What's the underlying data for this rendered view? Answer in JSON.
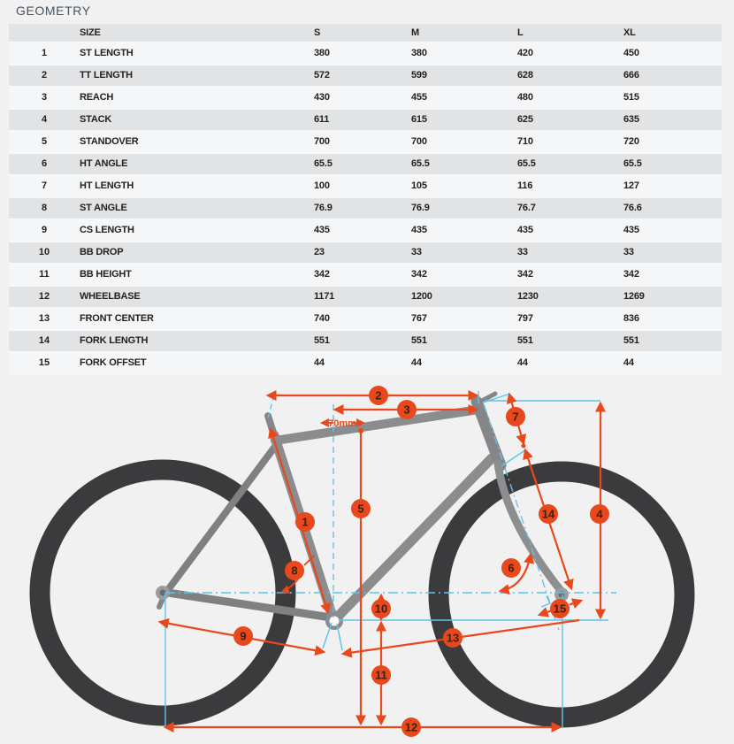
{
  "page": {
    "title": "GEOMETRY"
  },
  "table": {
    "columns": [
      "SIZE",
      "S",
      "M",
      "L",
      "XL"
    ],
    "rows": [
      {
        "num": "1",
        "label": "ST LENGTH",
        "values": [
          "380",
          "380",
          "420",
          "450"
        ]
      },
      {
        "num": "2",
        "label": "TT LENGTH",
        "values": [
          "572",
          "599",
          "628",
          "666"
        ]
      },
      {
        "num": "3",
        "label": "REACH",
        "values": [
          "430",
          "455",
          "480",
          "515"
        ]
      },
      {
        "num": "4",
        "label": "STACK",
        "values": [
          "611",
          "615",
          "625",
          "635"
        ]
      },
      {
        "num": "5",
        "label": "STANDOVER",
        "values": [
          "700",
          "700",
          "710",
          "720"
        ]
      },
      {
        "num": "6",
        "label": "HT ANGLE",
        "values": [
          "65.5",
          "65.5",
          "65.5",
          "65.5"
        ]
      },
      {
        "num": "7",
        "label": "HT LENGTH",
        "values": [
          "100",
          "105",
          "116",
          "127"
        ]
      },
      {
        "num": "8",
        "label": "ST ANGLE",
        "values": [
          "76.9",
          "76.9",
          "76.7",
          "76.6"
        ]
      },
      {
        "num": "9",
        "label": "CS LENGTH",
        "values": [
          "435",
          "435",
          "435",
          "435"
        ]
      },
      {
        "num": "10",
        "label": "BB DROP",
        "values": [
          "23",
          "33",
          "33",
          "33"
        ]
      },
      {
        "num": "11",
        "label": "BB HEIGHT",
        "values": [
          "342",
          "342",
          "342",
          "342"
        ]
      },
      {
        "num": "12",
        "label": "WHEELBASE",
        "values": [
          "1171",
          "1200",
          "1230",
          "1269"
        ]
      },
      {
        "num": "13",
        "label": "FRONT CENTER",
        "values": [
          "740",
          "767",
          "797",
          "836"
        ]
      },
      {
        "num": "14",
        "label": "FORK LENGTH",
        "values": [
          "551",
          "551",
          "551",
          "551"
        ]
      },
      {
        "num": "15",
        "label": "FORK OFFSET",
        "values": [
          "44",
          "44",
          "44",
          "44"
        ]
      }
    ]
  },
  "diagram": {
    "annotation": "70mm",
    "colors": {
      "accent_orange": "#e8481c",
      "measure_blue": "#5fc4e8",
      "frame_gray": "#8b8c8e",
      "tire_dark": "#3b3b3d"
    },
    "callouts": [
      {
        "n": "1"
      },
      {
        "n": "2"
      },
      {
        "n": "3"
      },
      {
        "n": "4"
      },
      {
        "n": "5"
      },
      {
        "n": "6"
      },
      {
        "n": "7"
      },
      {
        "n": "8"
      },
      {
        "n": "9"
      },
      {
        "n": "10"
      },
      {
        "n": "11"
      },
      {
        "n": "12"
      },
      {
        "n": "13"
      },
      {
        "n": "14"
      },
      {
        "n": "15"
      }
    ]
  }
}
